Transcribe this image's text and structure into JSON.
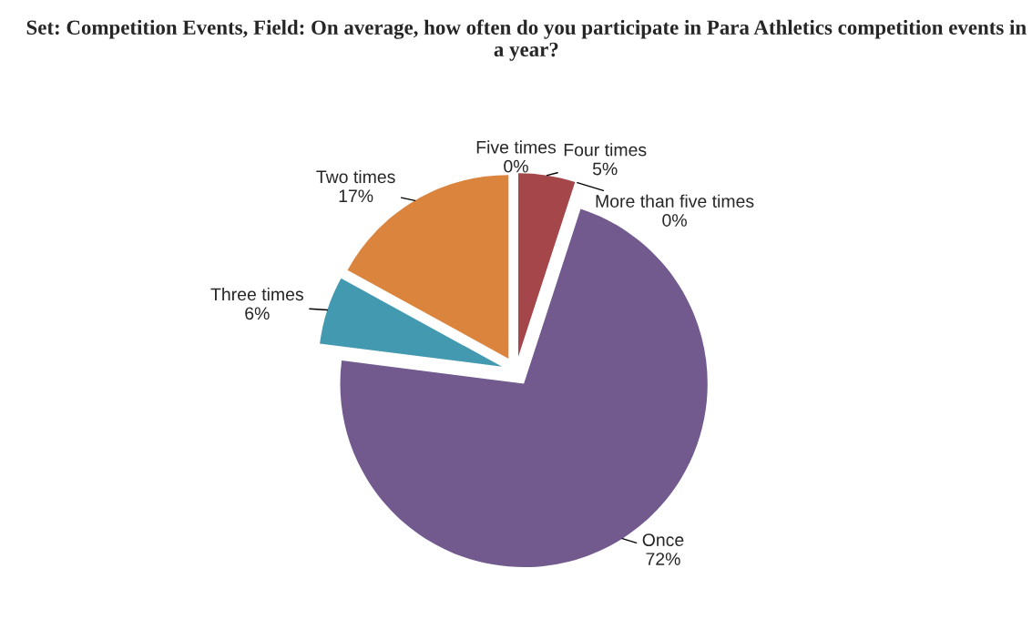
{
  "chart_data": {
    "type": "pie",
    "title": "Set: Competition Events, Field: On average, how often do you participate in Para Athletics competition events in a year?",
    "categories": [
      "Five times",
      "Four times",
      "More than five times",
      "Once",
      "Three times",
      "Two times"
    ],
    "values": [
      0,
      5,
      0,
      72,
      6,
      17
    ],
    "value_labels": [
      "0%",
      "5%",
      "0%",
      "72%",
      "6%",
      "17%"
    ],
    "colors": [
      "#4f81bd",
      "#a5474a",
      "#9bbb59",
      "#725a8f",
      "#4299b0",
      "#db843d"
    ],
    "legend": false
  }
}
